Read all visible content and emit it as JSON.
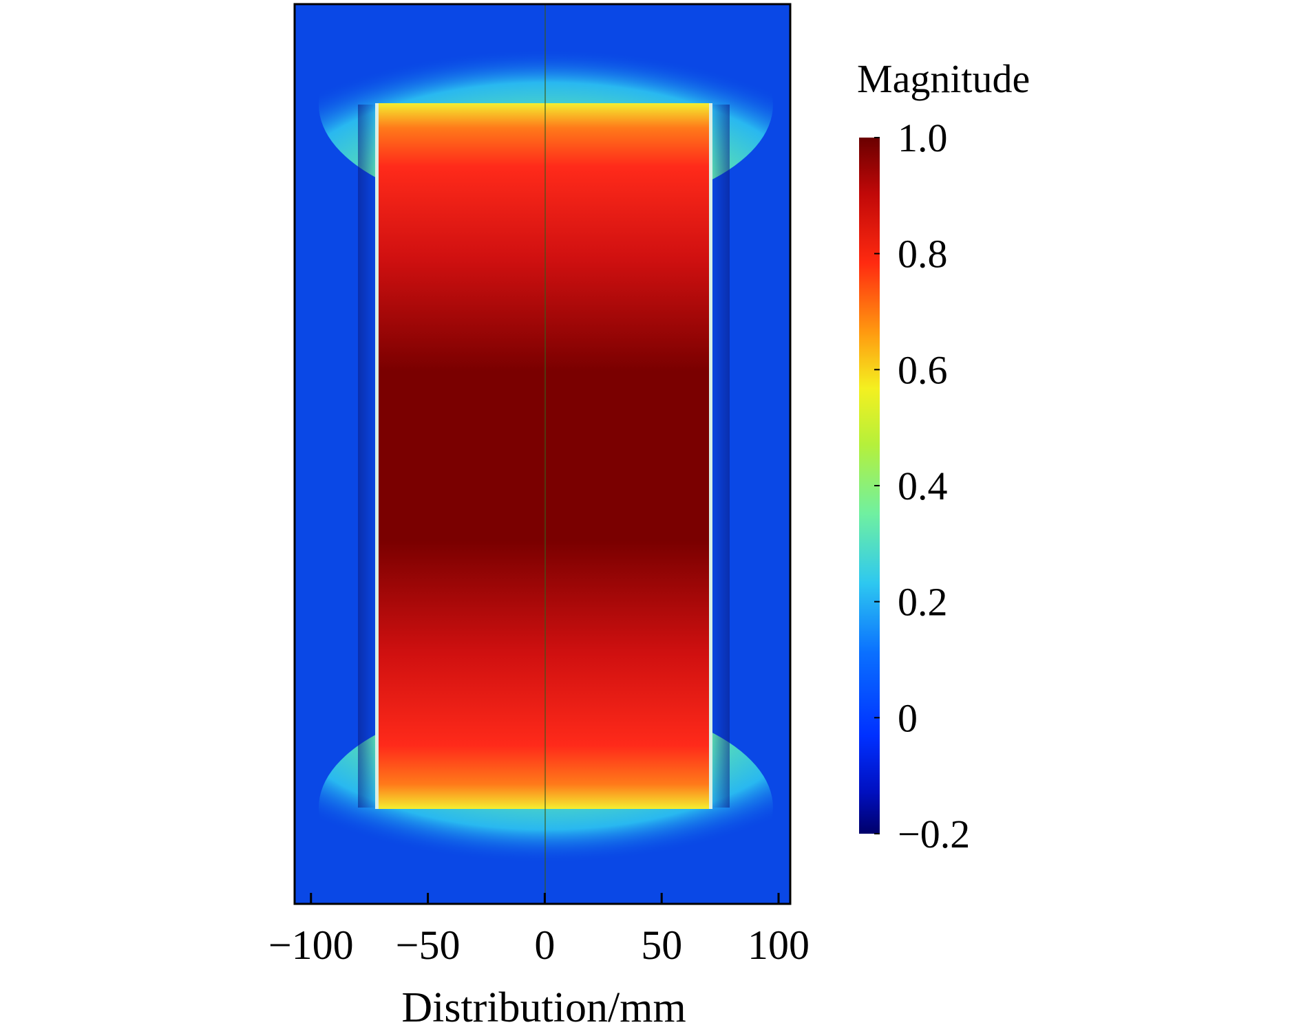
{
  "chart_data": {
    "type": "heatmap",
    "title": "",
    "xlabel": "Distribution/mm",
    "ylabel": "",
    "xlim": [
      -107,
      105
    ],
    "xticks": [
      -100,
      -50,
      0,
      50,
      100
    ],
    "xtick_labels": [
      "−100",
      "−50",
      "0",
      "50",
      "100"
    ],
    "grid": false,
    "colorbar": {
      "label": "Magnitude",
      "range": [
        -0.2,
        1.0
      ],
      "ticks": [
        1.0,
        0.8,
        0.6,
        0.4,
        0.2,
        0,
        -0.2
      ],
      "tick_labels": [
        "1.0",
        "0.8",
        "0.6",
        "0.4",
        "0.2",
        "0",
        "−0.2"
      ],
      "colormap": "jet",
      "placement": "right"
    },
    "field": {
      "conductor_x_range": [
        -72,
        72
      ],
      "interior_max": 1.0,
      "interior_edge_value": 0.55,
      "exterior_side_value": -0.02,
      "exterior_top_bottom_value": 0.3,
      "colors": {
        "interior_core": "#7a0000",
        "interior_edge": "#ff2a1a",
        "edge_band": "#e8ee2a",
        "exterior_top_bottom": "#5ef0a8",
        "exterior_side": "#0a3ee6",
        "wall": "#d8efe6",
        "center_line": "#3a5a1a"
      }
    }
  }
}
